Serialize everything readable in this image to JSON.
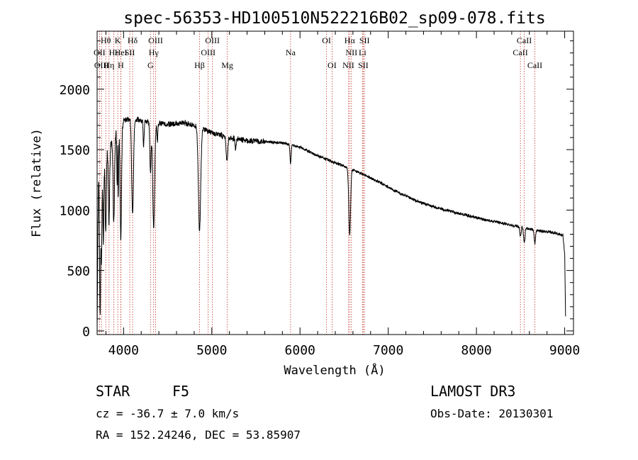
{
  "chart_data": {
    "type": "line",
    "title": "spec-56353-HD100510N522216B02_sp09-078.fits",
    "xlabel": "Wavelength (Å)",
    "ylabel": "Flux (relative)",
    "xlim": [
      3700,
      9100
    ],
    "ylim": [
      -30,
      2480
    ],
    "x_ticks": [
      4000,
      5000,
      6000,
      7000,
      8000,
      9000
    ],
    "y_ticks": [
      0,
      500,
      1000,
      1500,
      2000
    ],
    "grid": false,
    "continuum": [
      [
        3700,
        0
      ],
      [
        3715,
        1250
      ],
      [
        3740,
        1280
      ],
      [
        3780,
        1380
      ],
      [
        3830,
        1510
      ],
      [
        3900,
        1630
      ],
      [
        3950,
        1700
      ],
      [
        4000,
        1740
      ],
      [
        4100,
        1760
      ],
      [
        4300,
        1720
      ],
      [
        4500,
        1710
      ],
      [
        4700,
        1720
      ],
      [
        4850,
        1690
      ],
      [
        5000,
        1640
      ],
      [
        5200,
        1600
      ],
      [
        5400,
        1575
      ],
      [
        5600,
        1565
      ],
      [
        5800,
        1555
      ],
      [
        6000,
        1520
      ],
      [
        6200,
        1450
      ],
      [
        6400,
        1390
      ],
      [
        6550,
        1350
      ],
      [
        6700,
        1300
      ],
      [
        6900,
        1230
      ],
      [
        7100,
        1150
      ],
      [
        7300,
        1080
      ],
      [
        7500,
        1030
      ],
      [
        7700,
        990
      ],
      [
        7900,
        955
      ],
      [
        8100,
        920
      ],
      [
        8300,
        890
      ],
      [
        8500,
        860
      ],
      [
        8700,
        830
      ],
      [
        8900,
        810
      ],
      [
        8980,
        790
      ],
      [
        9000,
        640
      ],
      [
        9010,
        120
      ]
    ],
    "absorption_lines": [
      {
        "center": 3734,
        "depth": 1100,
        "width": 6
      },
      {
        "center": 3750,
        "depth": 700,
        "width": 5
      },
      {
        "center": 3771,
        "depth": 650,
        "width": 5
      },
      {
        "center": 3798,
        "depth": 650,
        "width": 6
      },
      {
        "center": 3835,
        "depth": 600,
        "width": 7
      },
      {
        "center": 3889,
        "depth": 700,
        "width": 8
      },
      {
        "center": 3934,
        "depth": 900,
        "width": 7
      },
      {
        "center": 3969,
        "depth": 950,
        "width": 8
      },
      {
        "center": 4102,
        "depth": 800,
        "width": 10
      },
      {
        "center": 4227,
        "depth": 200,
        "width": 5
      },
      {
        "center": 4305,
        "depth": 420,
        "width": 7
      },
      {
        "center": 4341,
        "depth": 850,
        "width": 11
      },
      {
        "center": 4383,
        "depth": 150,
        "width": 5
      },
      {
        "center": 4861,
        "depth": 850,
        "width": 13
      },
      {
        "center": 5172,
        "depth": 200,
        "width": 9
      },
      {
        "center": 5270,
        "depth": 100,
        "width": 6
      },
      {
        "center": 5893,
        "depth": 150,
        "width": 6
      },
      {
        "center": 6563,
        "depth": 550,
        "width": 10
      },
      {
        "center": 8498,
        "depth": 80,
        "width": 7
      },
      {
        "center": 8542,
        "depth": 130,
        "width": 8
      },
      {
        "center": 8662,
        "depth": 110,
        "width": 8
      }
    ],
    "emission_spikes": [
      {
        "center": 3933,
        "height": 700,
        "width": 3
      }
    ],
    "noise_amplitude": 45,
    "line_marks": [
      {
        "name": "Hθ",
        "wavelength": 3798,
        "row": 0
      },
      {
        "name": "K",
        "wavelength": 3934,
        "row": 0
      },
      {
        "name": "Hδ",
        "wavelength": 4102,
        "row": 0
      },
      {
        "name": "OIII",
        "wavelength": 4363,
        "row": 0
      },
      {
        "name": "OIII",
        "wavelength": 5007,
        "row": 0
      },
      {
        "name": "OI",
        "wavelength": 6300,
        "row": 0
      },
      {
        "name": "Hα",
        "wavelength": 6563,
        "row": 0
      },
      {
        "name": "SII",
        "wavelength": 6731,
        "row": 0
      },
      {
        "name": "CaII",
        "wavelength": 8542,
        "row": 0
      },
      {
        "name": "OII",
        "wavelength": 3727,
        "row": 1
      },
      {
        "name": "Hε",
        "wavelength": 3889,
        "row": 1
      },
      {
        "name": "HeI",
        "wavelength": 3970,
        "row": 1
      },
      {
        "name": "SII",
        "wavelength": 4070,
        "row": 1
      },
      {
        "name": "Hγ",
        "wavelength": 4341,
        "row": 1
      },
      {
        "name": "OIII",
        "wavelength": 4959,
        "row": 1
      },
      {
        "name": "Na",
        "wavelength": 5893,
        "row": 1
      },
      {
        "name": "NII",
        "wavelength": 6583,
        "row": 1
      },
      {
        "name": "Li",
        "wavelength": 6708,
        "row": 1
      },
      {
        "name": "CaII",
        "wavelength": 8498,
        "row": 1
      },
      {
        "name": "OIII",
        "wavelength": 3750,
        "row": 2
      },
      {
        "name": "Hη",
        "wavelength": 3835,
        "row": 2
      },
      {
        "name": "H",
        "wavelength": 3969,
        "row": 2
      },
      {
        "name": "G",
        "wavelength": 4305,
        "row": 2
      },
      {
        "name": "Hβ",
        "wavelength": 4861,
        "row": 2
      },
      {
        "name": "Mg",
        "wavelength": 5175,
        "row": 2
      },
      {
        "name": "OI",
        "wavelength": 6363,
        "row": 2
      },
      {
        "name": "NII",
        "wavelength": 6548,
        "row": 2
      },
      {
        "name": "SII",
        "wavelength": 6717,
        "row": 2
      },
      {
        "name": "CaII",
        "wavelength": 8662,
        "row": 2
      }
    ]
  },
  "footer": {
    "object_class": "STAR",
    "subclass": "F5",
    "redshift": "cz = -36.7 ± 7.0 km/s",
    "coords": "RA = 152.24246, DEC =  53.85907",
    "survey": "LAMOST DR3",
    "obs_date": "Obs-Date: 20130301"
  },
  "colors": {
    "background": "#ffffff",
    "ink": "#000000",
    "line_marker": "#c0392b"
  }
}
